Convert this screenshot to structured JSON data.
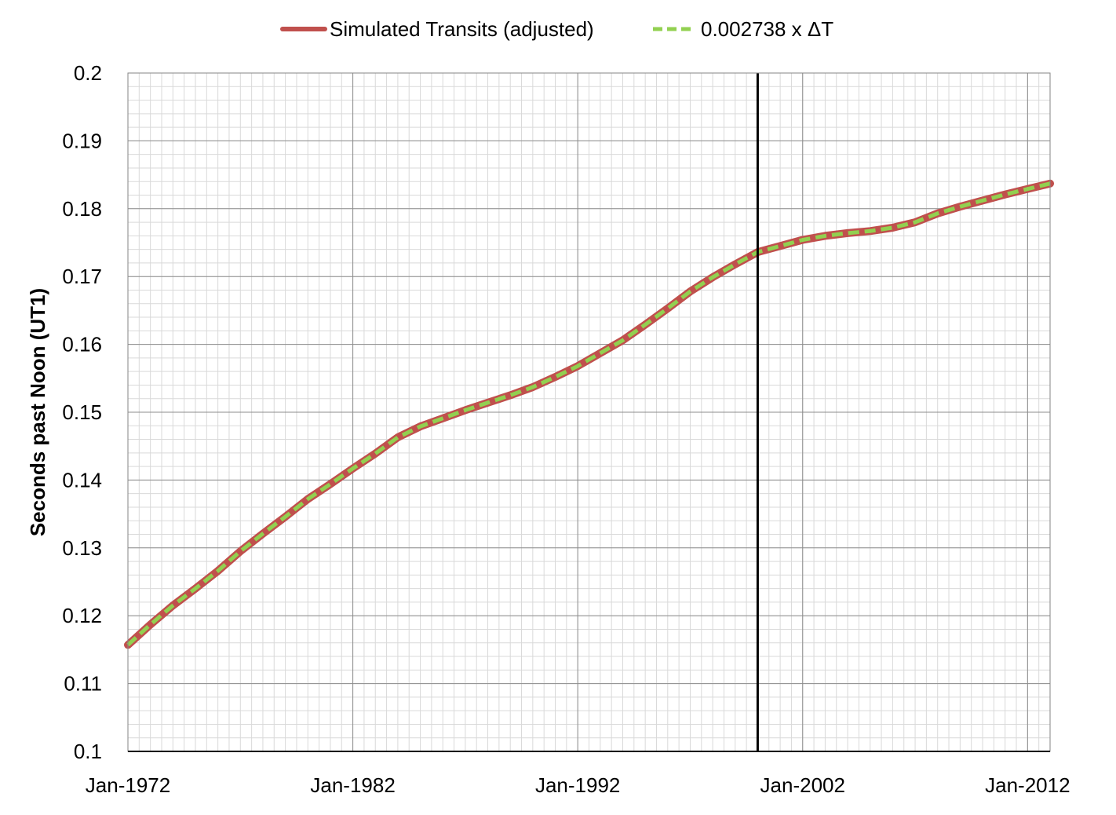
{
  "chart_data": {
    "type": "line",
    "title": "",
    "xlabel": "",
    "ylabel": "Seconds past Noon (UT1)",
    "x_tick_labels": [
      "Jan-1972",
      "Jan-1982",
      "Jan-1992",
      "Jan-2002",
      "Jan-2012"
    ],
    "x_ticks": [
      "1972-01",
      "1982-01",
      "1992-01",
      "2002-01",
      "2012-01"
    ],
    "xlim": [
      "1972-01",
      "2013-01"
    ],
    "y_tick_labels": [
      "0.1",
      "0.11",
      "0.12",
      "0.13",
      "0.14",
      "0.15",
      "0.16",
      "0.17",
      "0.18",
      "0.19",
      "0.2"
    ],
    "ylim": [
      0.1,
      0.2
    ],
    "grid": {
      "major": true,
      "minor": true
    },
    "legend_position": "top",
    "reference_line_x": "2000-01",
    "series": [
      {
        "name": "Simulated Transits (adjusted)",
        "color": "#c0504d",
        "style": "solid",
        "x": [
          "1972-01",
          "1973-01",
          "1974-01",
          "1975-01",
          "1976-01",
          "1977-01",
          "1978-01",
          "1979-01",
          "1980-01",
          "1981-01",
          "1982-01",
          "1983-01",
          "1984-01",
          "1985-01",
          "1986-01",
          "1987-01",
          "1988-01",
          "1989-01",
          "1990-01",
          "1991-01",
          "1992-01",
          "1993-01",
          "1994-01",
          "1995-01",
          "1996-01",
          "1997-01",
          "1998-01",
          "1999-01",
          "2000-01",
          "2001-01",
          "2002-01",
          "2003-01",
          "2004-01",
          "2005-01",
          "2006-01",
          "2007-01",
          "2008-01",
          "2009-01",
          "2010-01",
          "2011-01",
          "2012-01",
          "2013-01"
        ],
        "y": [
          0.1157,
          0.1187,
          0.1215,
          0.124,
          0.1266,
          0.1295,
          0.1321,
          0.1346,
          0.1372,
          0.1394,
          0.1417,
          0.1439,
          0.1463,
          0.1479,
          0.1491,
          0.1503,
          0.1514,
          0.1525,
          0.1537,
          0.1552,
          0.1568,
          0.1587,
          0.1606,
          0.1629,
          0.1653,
          0.1678,
          0.1699,
          0.1718,
          0.1736,
          0.1745,
          0.1754,
          0.176,
          0.1764,
          0.1767,
          0.1772,
          0.178,
          0.1793,
          0.1803,
          0.1812,
          0.1821,
          0.1829,
          0.1837
        ]
      },
      {
        "name": "0.002738 x ΔT",
        "color": "#92d050",
        "style": "dashed",
        "x": [
          "1972-01",
          "1973-01",
          "1974-01",
          "1975-01",
          "1976-01",
          "1977-01",
          "1978-01",
          "1979-01",
          "1980-01",
          "1981-01",
          "1982-01",
          "1983-01",
          "1984-01",
          "1985-01",
          "1986-01",
          "1987-01",
          "1988-01",
          "1989-01",
          "1990-01",
          "1991-01",
          "1992-01",
          "1993-01",
          "1994-01",
          "1995-01",
          "1996-01",
          "1997-01",
          "1998-01",
          "1999-01",
          "2000-01",
          "2001-01",
          "2002-01",
          "2003-01",
          "2004-01",
          "2005-01",
          "2006-01",
          "2007-01",
          "2008-01",
          "2009-01",
          "2010-01",
          "2011-01",
          "2012-01",
          "2013-01"
        ],
        "y": [
          0.1157,
          0.1187,
          0.1215,
          0.124,
          0.1266,
          0.1295,
          0.1321,
          0.1346,
          0.1372,
          0.1394,
          0.1417,
          0.1439,
          0.1463,
          0.1479,
          0.1491,
          0.1503,
          0.1514,
          0.1525,
          0.1537,
          0.1552,
          0.1568,
          0.1587,
          0.1606,
          0.1629,
          0.1653,
          0.1678,
          0.1699,
          0.1718,
          0.1736,
          0.1745,
          0.1754,
          0.176,
          0.1764,
          0.1767,
          0.1772,
          0.178,
          0.1793,
          0.1803,
          0.1812,
          0.1821,
          0.1829,
          0.1837
        ]
      }
    ]
  }
}
